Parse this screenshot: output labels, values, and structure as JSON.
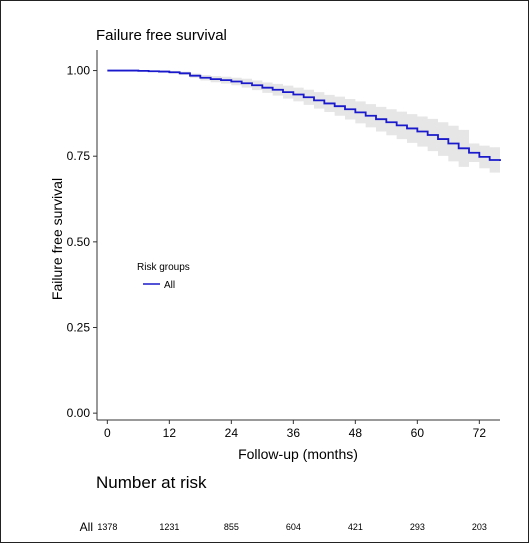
{
  "chart_data": {
    "type": "line",
    "title": "Failure free survival",
    "xlabel": "Follow-up (months)",
    "ylabel": "Failure free survival",
    "xlim": [
      -2,
      76
    ],
    "ylim": [
      -0.02,
      1.06
    ],
    "x_ticks": [
      0,
      12,
      24,
      36,
      48,
      60,
      72
    ],
    "y_ticks": [
      0.0,
      0.25,
      0.5,
      0.75,
      1.0
    ],
    "y_tick_labels": [
      "0.00",
      "0.25",
      "0.50",
      "0.75",
      "1.00"
    ],
    "grid": false,
    "legend": {
      "title": "Risk groups",
      "placement": "inside-left",
      "entries": [
        {
          "name": "All",
          "color": "#1a1acc"
        }
      ]
    },
    "series": [
      {
        "name": "All",
        "color": "#1a1acc",
        "ci_color": "#e6e6e6",
        "x": [
          0,
          4,
          6,
          8,
          10,
          12,
          14,
          16,
          18,
          20,
          22,
          24,
          26,
          28,
          30,
          32,
          34,
          36,
          38,
          40,
          42,
          44,
          46,
          48,
          50,
          52,
          54,
          56,
          58,
          60,
          62,
          64,
          66,
          68,
          70,
          72,
          74,
          76
        ],
        "y": [
          1.0,
          1.0,
          0.999,
          0.998,
          0.997,
          0.995,
          0.992,
          0.985,
          0.979,
          0.975,
          0.972,
          0.968,
          0.963,
          0.957,
          0.95,
          0.944,
          0.937,
          0.93,
          0.922,
          0.913,
          0.904,
          0.896,
          0.887,
          0.878,
          0.868,
          0.858,
          0.849,
          0.84,
          0.831,
          0.822,
          0.812,
          0.8,
          0.787,
          0.773,
          0.76,
          0.748,
          0.739,
          0.736
        ],
        "lower": [
          1.0,
          1.0,
          0.998,
          0.996,
          0.994,
          0.991,
          0.987,
          0.979,
          0.971,
          0.966,
          0.962,
          0.957,
          0.95,
          0.943,
          0.935,
          0.927,
          0.918,
          0.91,
          0.9,
          0.889,
          0.879,
          0.868,
          0.857,
          0.846,
          0.834,
          0.822,
          0.811,
          0.8,
          0.789,
          0.778,
          0.765,
          0.751,
          0.735,
          0.719,
          0.733,
          0.715,
          0.702,
          0.695
        ],
        "upper": [
          1.0,
          1.0,
          1.0,
          1.0,
          1.0,
          0.999,
          0.997,
          0.991,
          0.987,
          0.984,
          0.982,
          0.979,
          0.976,
          0.971,
          0.965,
          0.961,
          0.956,
          0.95,
          0.944,
          0.937,
          0.929,
          0.924,
          0.917,
          0.91,
          0.902,
          0.894,
          0.887,
          0.88,
          0.873,
          0.866,
          0.859,
          0.849,
          0.839,
          0.827,
          0.787,
          0.781,
          0.776,
          0.777
        ]
      }
    ]
  },
  "risk_table": {
    "title": "Number at risk",
    "rows": [
      {
        "label": "All",
        "times": [
          0,
          12,
          24,
          36,
          48,
          60,
          72
        ],
        "counts": [
          "1378",
          "1231",
          "855",
          "604",
          "421",
          "293",
          "203"
        ]
      }
    ]
  }
}
